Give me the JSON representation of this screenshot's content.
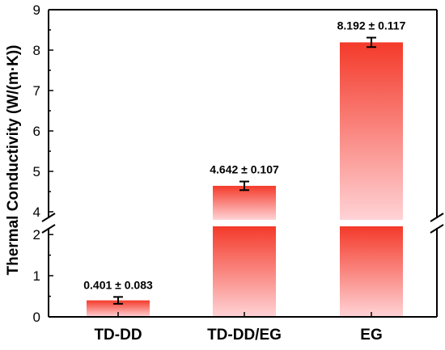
{
  "chart_data": {
    "type": "bar",
    "ylabel": "Thermal Conductivity (W/(m·K))",
    "categories": [
      "TD-DD",
      "TD-DD/EG",
      "EG"
    ],
    "values": [
      0.401,
      4.642,
      8.192
    ],
    "errors": [
      0.083,
      0.107,
      0.117
    ],
    "data_labels": [
      "0.401 ± 0.083",
      "4.642 ± 0.107",
      "8.192 ± 0.117"
    ],
    "y_axis_break": {
      "lower_range": [
        0,
        2.2
      ],
      "upper_range": [
        3.8,
        9
      ]
    },
    "yticks_lower": [
      "0",
      "1",
      "2"
    ],
    "yticks_upper": [
      "4",
      "5",
      "6",
      "7",
      "8",
      "9"
    ],
    "bar_color": "#f43a2a",
    "bar_fade_color": "#ffd3d6",
    "grid": false,
    "legend": "none"
  }
}
